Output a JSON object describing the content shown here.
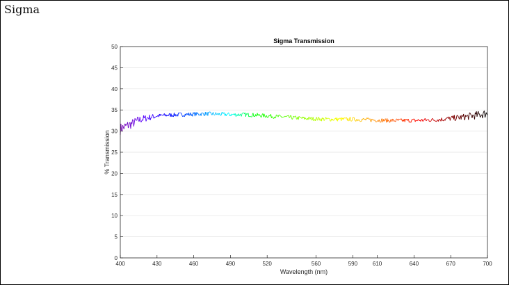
{
  "page": {
    "title": "Sigma"
  },
  "chart_data": {
    "type": "line",
    "title": "Sigma Transmission",
    "xlabel": "Wavelength (nm)",
    "ylabel": "% Transmission",
    "xlim": [
      400,
      700
    ],
    "ylim": [
      0,
      50
    ],
    "xticks": [
      400,
      430,
      460,
      490,
      520,
      560,
      590,
      610,
      640,
      670,
      700
    ],
    "yticks": [
      0,
      5,
      10,
      15,
      20,
      25,
      30,
      35,
      40,
      45,
      50
    ],
    "grid": true,
    "line_colored_by_wavelength": true,
    "series": [
      {
        "x": [
          400,
          405,
          410,
          415,
          420,
          430,
          440,
          450,
          460,
          470,
          480,
          490,
          500,
          510,
          520,
          530,
          540,
          550,
          560,
          570,
          580,
          590,
          600,
          610,
          620,
          630,
          640,
          650,
          660,
          670,
          680,
          690,
          700
        ],
        "y": [
          30.5,
          31.2,
          31.8,
          32.6,
          33.0,
          33.6,
          33.8,
          33.9,
          34.0,
          34.1,
          34.0,
          33.9,
          33.9,
          33.8,
          33.6,
          33.4,
          33.2,
          33.0,
          32.9,
          32.8,
          32.8,
          32.8,
          32.7,
          32.6,
          32.5,
          32.5,
          32.5,
          32.6,
          32.7,
          33.0,
          33.3,
          33.7,
          34.2
        ]
      }
    ]
  }
}
